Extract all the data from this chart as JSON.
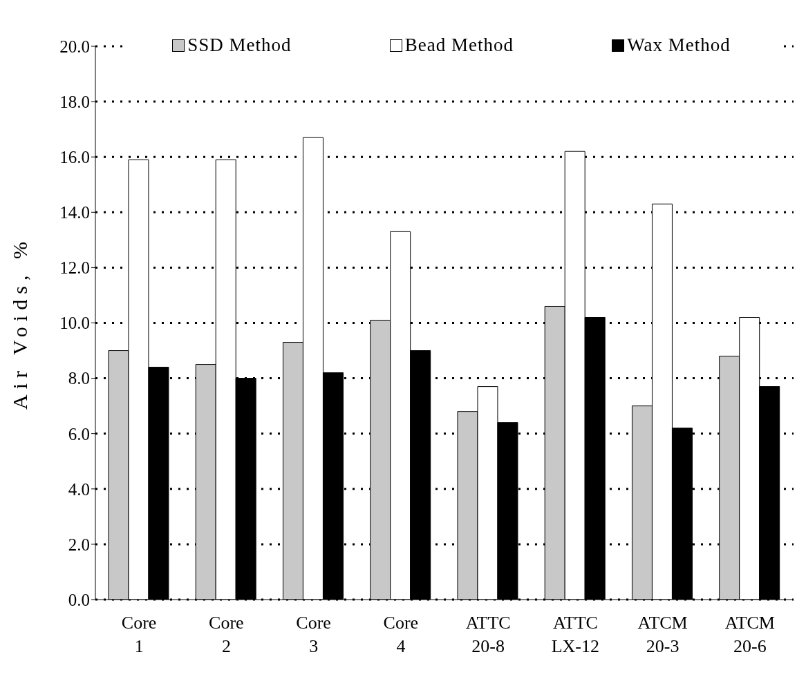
{
  "chart_data": {
    "type": "bar",
    "ylabel": "Air Voids, %",
    "categories": [
      "Core 1",
      "Core 2",
      "Core 3",
      "Core 4",
      "ATTC 20-8",
      "ATTC LX-12",
      "ATCM 20-3",
      "ATCM 20-6"
    ],
    "series": [
      {
        "name": "SSD Method",
        "color": "#c8c8c8",
        "values": [
          9.0,
          8.5,
          9.3,
          10.1,
          6.8,
          10.6,
          7.0,
          8.8
        ]
      },
      {
        "name": "Bead Method",
        "color": "#ffffff",
        "values": [
          15.9,
          15.9,
          16.7,
          13.3,
          7.7,
          16.2,
          14.3,
          10.2
        ]
      },
      {
        "name": "Wax Method",
        "color": "#000000",
        "values": [
          8.4,
          8.0,
          8.2,
          9.0,
          6.4,
          10.2,
          6.2,
          7.7
        ]
      }
    ],
    "ylim": [
      0,
      20
    ],
    "yticks": [
      {
        "value": 0,
        "label": "0.0"
      },
      {
        "value": 2,
        "label": "2.0"
      },
      {
        "value": 4,
        "label": "4.0"
      },
      {
        "value": 6,
        "label": "6.0"
      },
      {
        "value": 8,
        "label": "8.0"
      },
      {
        "value": 10,
        "label": "10.0"
      },
      {
        "value": 12,
        "label": "12.0"
      },
      {
        "value": 14,
        "label": "14.0"
      },
      {
        "value": 16,
        "label": "16.0"
      },
      {
        "value": 18,
        "label": "18.0"
      },
      {
        "value": 20,
        "label": "20.0"
      }
    ],
    "grid": "y",
    "legend": "top"
  }
}
